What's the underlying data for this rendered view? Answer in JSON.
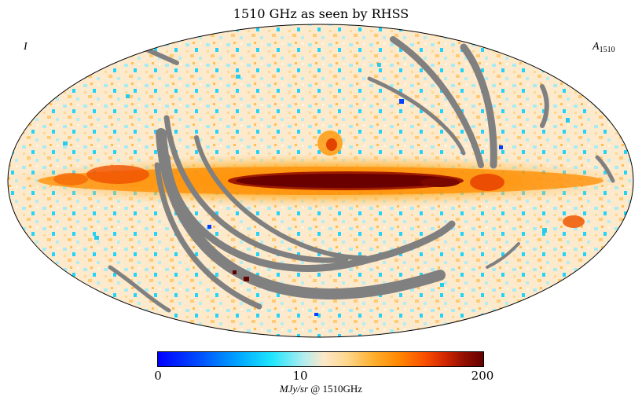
{
  "chart_data": {
    "type": "heatmap",
    "projection": "mollweide",
    "title": "1510 GHz as seen by RHSS",
    "stokes_label": "I",
    "map_label": "A",
    "map_label_subscript": "1510",
    "colorbar": {
      "scale": "log-like",
      "min": 0,
      "max": 200,
      "major_ticks": [
        {
          "value": 0,
          "label": "0"
        },
        {
          "value": 10,
          "label": "10"
        },
        {
          "value": 200,
          "label": "200"
        }
      ],
      "unit_italic": "MJy/sr",
      "unit_suffix": " @ 1510GHz",
      "colors": [
        "#0000ff",
        "#00a8ff",
        "#1ee6ff",
        "#fce8c8",
        "#ffb030",
        "#ff8800",
        "#fa5000",
        "#d42800",
        "#640000"
      ]
    },
    "features": {
      "galactic_plane": "bright emission band along equator, peak > 200 near center",
      "masked_regions": "grey scan-gap arcs (no data)",
      "mask_color": "#808080"
    }
  }
}
